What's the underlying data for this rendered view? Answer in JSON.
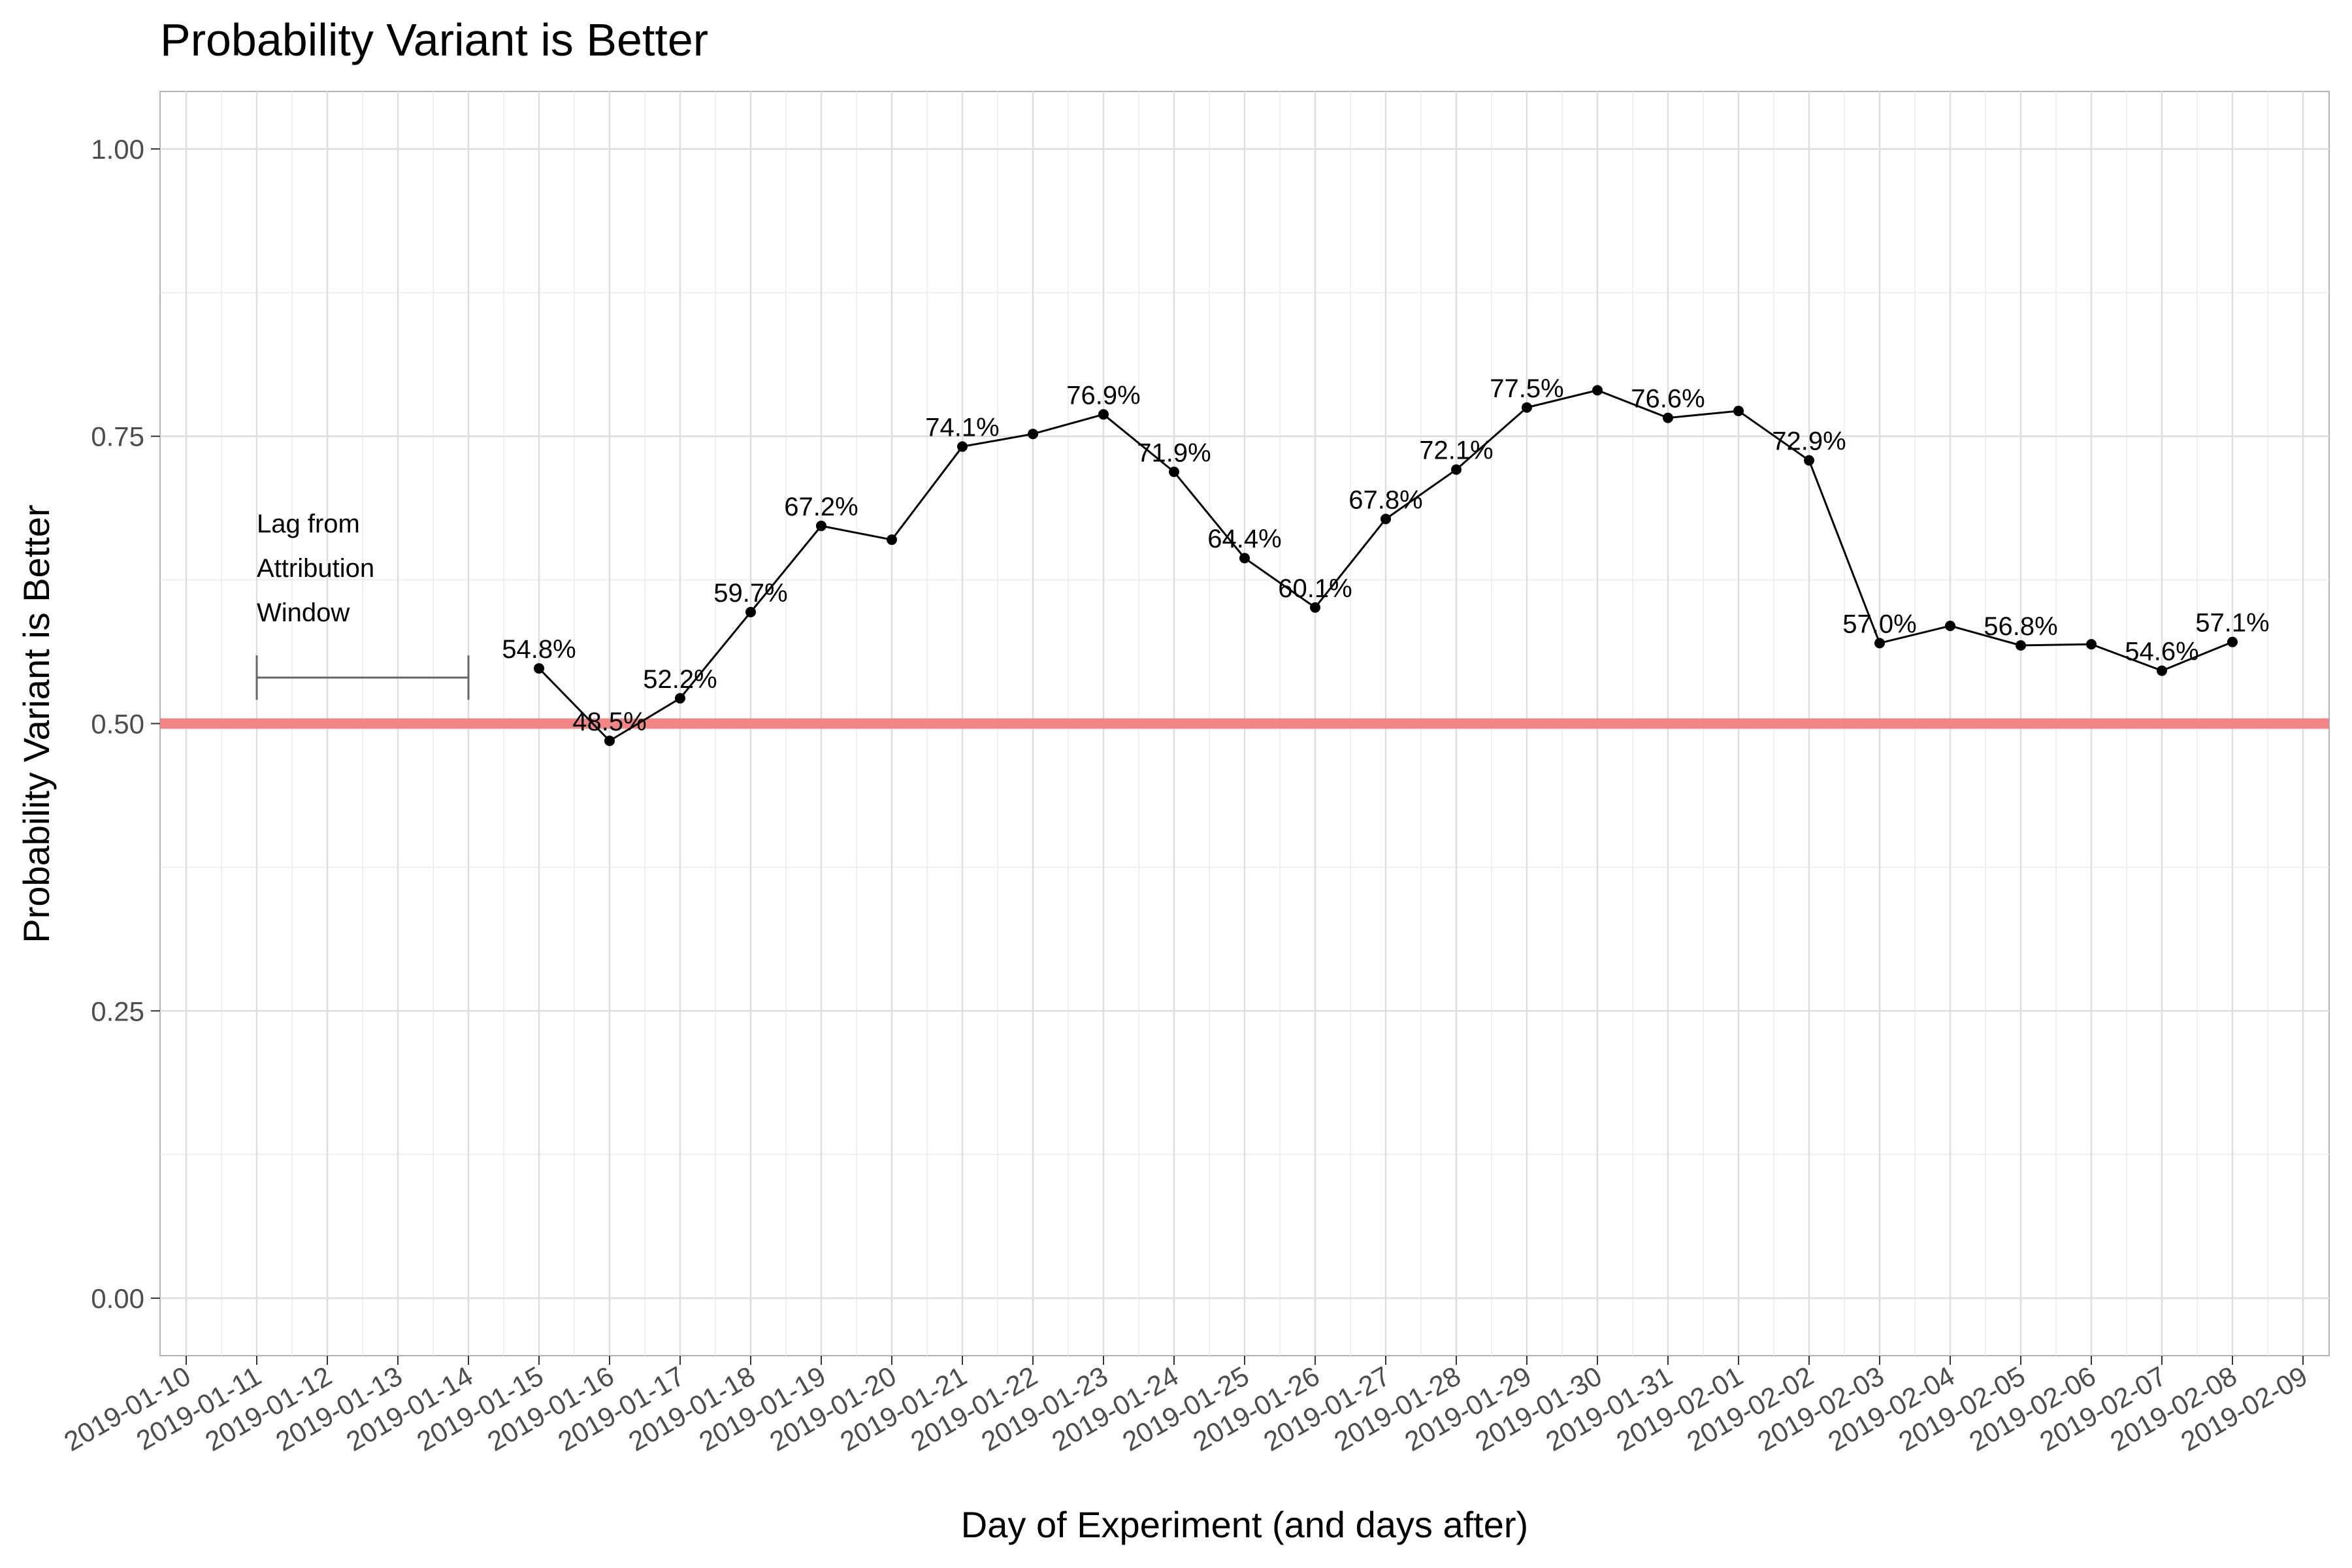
{
  "chart_data": {
    "type": "line",
    "title": "Probability Variant is Better",
    "xlabel": "Day of Experiment (and days after)",
    "ylabel": "Probability Variant is Better",
    "x_ticks": [
      "2019-01-10",
      "2019-01-11",
      "2019-01-12",
      "2019-01-13",
      "2019-01-14",
      "2019-01-15",
      "2019-01-16",
      "2019-01-17",
      "2019-01-18",
      "2019-01-19",
      "2019-01-20",
      "2019-01-21",
      "2019-01-22",
      "2019-01-23",
      "2019-01-24",
      "2019-01-25",
      "2019-01-26",
      "2019-01-27",
      "2019-01-28",
      "2019-01-29",
      "2019-01-30",
      "2019-01-31",
      "2019-02-01",
      "2019-02-02",
      "2019-02-03",
      "2019-02-04",
      "2019-02-05",
      "2019-02-06",
      "2019-02-07",
      "2019-02-08",
      "2019-02-09"
    ],
    "y_ticks": [
      "0.00",
      "0.25",
      "0.50",
      "0.75",
      "1.00"
    ],
    "xlim": [
      "2019-01-10",
      "2019-02-09"
    ],
    "ylim": [
      -0.05,
      1.05
    ],
    "grid": true,
    "reference_line": {
      "y": 0.5,
      "color": "#f08080"
    },
    "line_color": "#000000",
    "points": [
      {
        "x": "2019-01-15",
        "y": 0.548,
        "label": "54.8%"
      },
      {
        "x": "2019-01-16",
        "y": 0.485,
        "label": "48.5%"
      },
      {
        "x": "2019-01-17",
        "y": 0.522,
        "label": "52.2%"
      },
      {
        "x": "2019-01-18",
        "y": 0.597,
        "label": "59.7%"
      },
      {
        "x": "2019-01-19",
        "y": 0.672,
        "label": "67.2%"
      },
      {
        "x": "2019-01-20",
        "y": 0.66,
        "label": ""
      },
      {
        "x": "2019-01-21",
        "y": 0.741,
        "label": "74.1%"
      },
      {
        "x": "2019-01-22",
        "y": 0.752,
        "label": ""
      },
      {
        "x": "2019-01-23",
        "y": 0.769,
        "label": "76.9%"
      },
      {
        "x": "2019-01-24",
        "y": 0.719,
        "label": "71.9%"
      },
      {
        "x": "2019-01-25",
        "y": 0.644,
        "label": "64.4%"
      },
      {
        "x": "2019-01-26",
        "y": 0.601,
        "label": "60.1%"
      },
      {
        "x": "2019-01-27",
        "y": 0.678,
        "label": "67.8%"
      },
      {
        "x": "2019-01-28",
        "y": 0.721,
        "label": "72.1%"
      },
      {
        "x": "2019-01-29",
        "y": 0.775,
        "label": "77.5%"
      },
      {
        "x": "2019-01-30",
        "y": 0.79,
        "label": ""
      },
      {
        "x": "2019-01-31",
        "y": 0.766,
        "label": "76.6%"
      },
      {
        "x": "2019-02-01",
        "y": 0.772,
        "label": ""
      },
      {
        "x": "2019-02-02",
        "y": 0.729,
        "label": "72.9%"
      },
      {
        "x": "2019-02-03",
        "y": 0.57,
        "label": "57.0%"
      },
      {
        "x": "2019-02-04",
        "y": 0.585,
        "label": ""
      },
      {
        "x": "2019-02-05",
        "y": 0.568,
        "label": "56.8%"
      },
      {
        "x": "2019-02-06",
        "y": 0.569,
        "label": ""
      },
      {
        "x": "2019-02-07",
        "y": 0.546,
        "label": "54.6%"
      },
      {
        "x": "2019-02-08",
        "y": 0.571,
        "label": "57.1%"
      }
    ],
    "annotation": {
      "lines": [
        "Lag from",
        "Attribution",
        "Window"
      ],
      "x_start": "2019-01-11",
      "x_end": "2019-01-14",
      "y": 0.54,
      "color": "#666666"
    }
  }
}
